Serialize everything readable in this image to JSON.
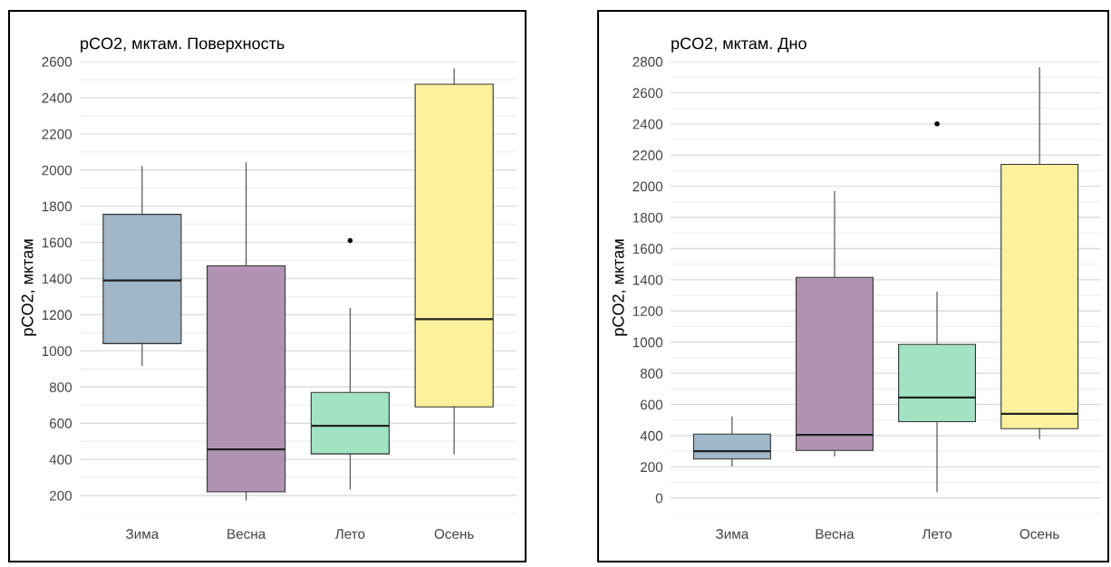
{
  "chart_data": [
    {
      "type": "box",
      "title": "pCO2, мктам. Поверхность",
      "ylabel": "pCO2, мктам",
      "categories": [
        "Зима",
        "Весна",
        "Лето",
        "Осень"
      ],
      "colors": [
        "#a0b7c9",
        "#b093b3",
        "#a1e3c2",
        "#fdf19d"
      ],
      "ylim": [
        100,
        2600
      ],
      "yticks": [
        200,
        400,
        600,
        800,
        1000,
        1200,
        1400,
        1600,
        1800,
        2000,
        2200,
        2400,
        2600
      ],
      "grid": "y",
      "boxes": [
        {
          "low": 920,
          "q1": 1040,
          "median": 1390,
          "q3": 1755,
          "high": 2020
        },
        {
          "low": 175,
          "q1": 220,
          "median": 455,
          "q3": 1470,
          "high": 2040
        },
        {
          "low": 235,
          "q1": 430,
          "median": 585,
          "q3": 770,
          "high": 1235,
          "outliers": [
            1610
          ]
        },
        {
          "low": 430,
          "q1": 690,
          "median": 1175,
          "q3": 2475,
          "high": 2560
        }
      ]
    },
    {
      "type": "box",
      "title": "pCO2, мктам. Дно",
      "ylabel": "pCO2, мктам",
      "categories": [
        "Зима",
        "Весна",
        "Лето",
        "Осень"
      ],
      "colors": [
        "#a0b7c9",
        "#b093b3",
        "#a1e3c2",
        "#fdf19d"
      ],
      "ylim": [
        -100,
        2800
      ],
      "yticks": [
        0,
        200,
        400,
        600,
        800,
        1000,
        1200,
        1400,
        1600,
        1800,
        2000,
        2200,
        2400,
        2600,
        2800
      ],
      "grid": "y",
      "boxes": [
        {
          "low": 205,
          "q1": 250,
          "median": 300,
          "q3": 410,
          "high": 520
        },
        {
          "low": 270,
          "q1": 305,
          "median": 405,
          "q3": 1415,
          "high": 1965
        },
        {
          "low": 40,
          "q1": 490,
          "median": 645,
          "q3": 985,
          "high": 1320,
          "outliers": [
            2400
          ]
        },
        {
          "low": 380,
          "q1": 445,
          "median": 540,
          "q3": 2140,
          "high": 2760
        }
      ]
    }
  ]
}
